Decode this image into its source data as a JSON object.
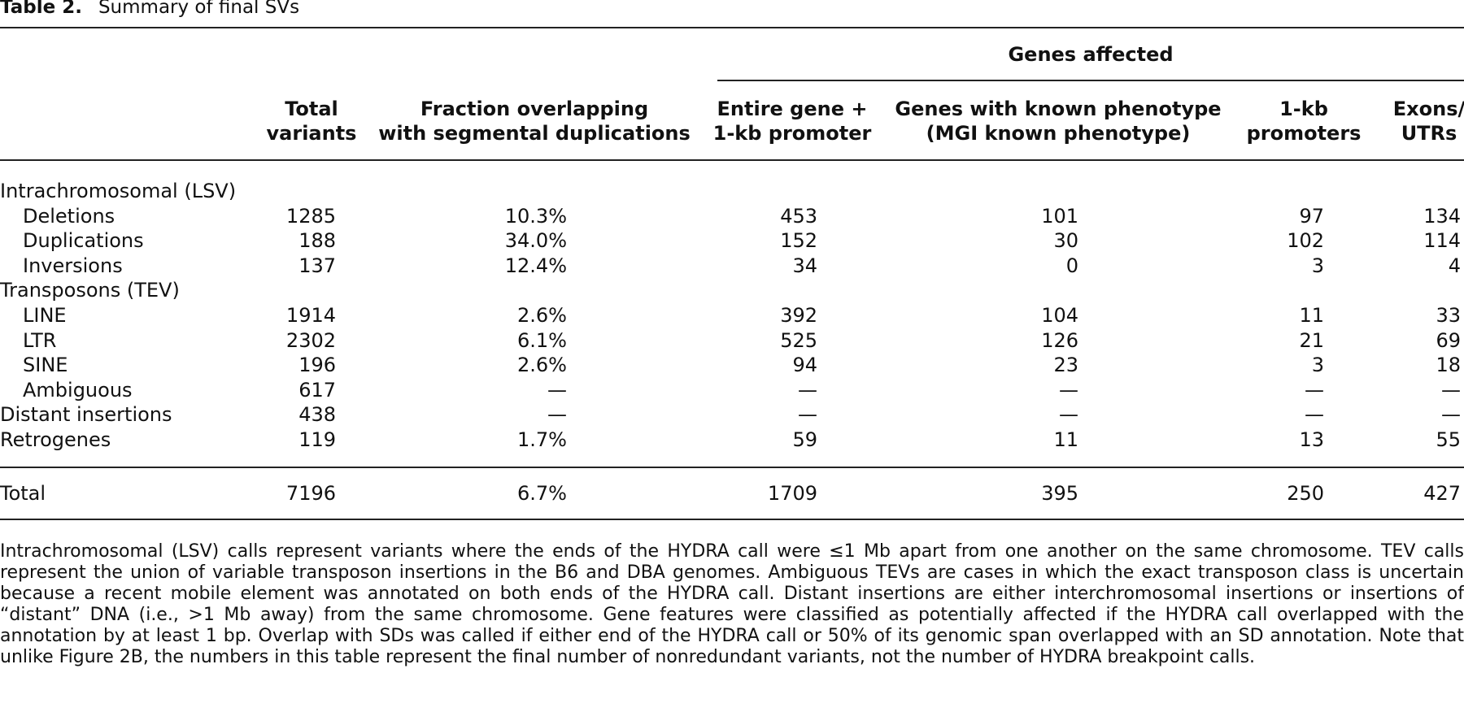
{
  "caption": {
    "label": "Table 2.",
    "title": "Summary of final SVs"
  },
  "table": {
    "group_header": "Genes affected",
    "columns": [
      {
        "lines": [
          "Total",
          "variants"
        ]
      },
      {
        "lines": [
          "Fraction overlapping",
          "with segmental duplications"
        ]
      },
      {
        "lines": [
          "Entire gene +",
          "1-kb promoter"
        ]
      },
      {
        "lines": [
          "Genes with known phenotype",
          "(MGI known phenotype)"
        ]
      },
      {
        "lines": [
          "1-kb",
          "promoters"
        ]
      },
      {
        "lines": [
          "Exons/",
          "UTRs"
        ]
      }
    ],
    "sections": [
      {
        "label": "Intrachromosomal (LSV)",
        "rows": [
          {
            "label": "Deletions",
            "cells": [
              1285,
              "10.3%",
              453,
              101,
              97,
              134
            ]
          },
          {
            "label": "Duplications",
            "cells": [
              188,
              "34.0%",
              152,
              30,
              102,
              114
            ]
          },
          {
            "label": "Inversions",
            "cells": [
              137,
              "12.4%",
              34,
              0,
              3,
              4
            ]
          }
        ]
      },
      {
        "label": "Transposons (TEV)",
        "rows": [
          {
            "label": "LINE",
            "cells": [
              1914,
              "2.6%",
              392,
              104,
              11,
              33
            ]
          },
          {
            "label": "LTR",
            "cells": [
              2302,
              "6.1%",
              525,
              126,
              21,
              69
            ]
          },
          {
            "label": "SINE",
            "cells": [
              196,
              "2.6%",
              94,
              23,
              3,
              18
            ]
          },
          {
            "label": "Ambiguous",
            "cells": [
              617,
              "—",
              "—",
              "—",
              "—",
              "—"
            ]
          }
        ]
      },
      {
        "label": "Distant insertions",
        "cells": [
          438,
          "—",
          "—",
          "—",
          "—",
          "—"
        ]
      },
      {
        "label": "Retrogenes",
        "cells": [
          119,
          "1.7%",
          59,
          11,
          13,
          55
        ]
      }
    ],
    "total": {
      "label": "Total",
      "cells": [
        7196,
        "6.7%",
        1709,
        395,
        250,
        427
      ]
    }
  },
  "footnote": "Intrachromosomal (LSV) calls represent variants where the ends of the HYDRA call were ≤1 Mb apart from one another on the same chromosome. TEV calls represent the union of variable transposon insertions in the B6 and DBA genomes. Ambiguous TEVs are cases in which the exact transposon class is uncertain because a recent mobile element was annotated on both ends of the HYDRA call. Distant insertions are either interchromosomal insertions or insertions of “distant” DNA (i.e., >1 Mb away) from the same chromosome. Gene features were classified as potentially affected if the HYDRA call overlapped with the annotation by at least 1 bp. Overlap with SDs was called if either end of the HYDRA call or 50% of its genomic span overlapped with an SD annotation. Note that unlike Figure 2B, the numbers in this table represent the final number of nonredundant variants, not the number of HYDRA breakpoint calls."
}
